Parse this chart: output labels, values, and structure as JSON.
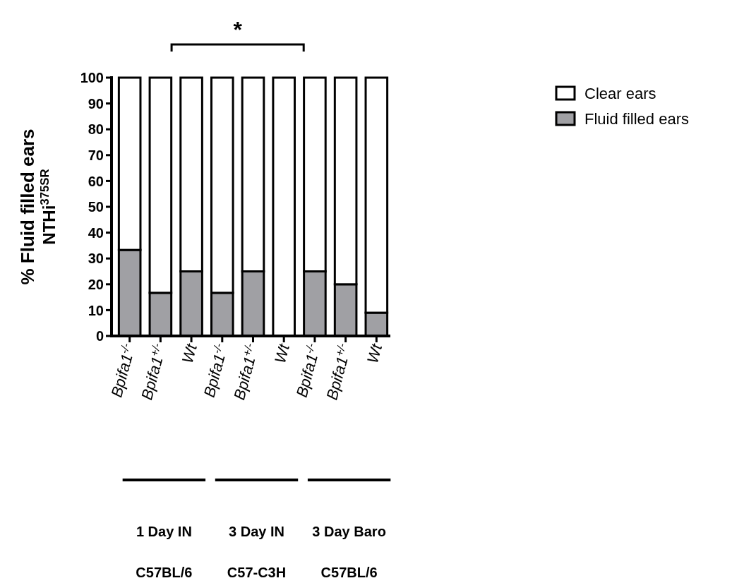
{
  "chart_data": {
    "type": "bar",
    "stacked": true,
    "ylabel": "% Fluid filled ears\nNTHi$^{375SR}$",
    "categories": [
      "Bpifa1$^{-/-}$",
      "Bpifa1$^{+/-}$",
      "Wt",
      "Bpifa1$^{-/-}$",
      "Bpifa1$^{+/-}$",
      "Wt",
      "Bpifa1$^{-/-}$",
      "Bpifa1$^{+/-}$",
      "Wt"
    ],
    "series": [
      {
        "name": "Fluid filled ears",
        "color": "#a0a0a4",
        "values": [
          33.3,
          16.7,
          25,
          16.7,
          25,
          0,
          25,
          20,
          9
        ]
      },
      {
        "name": "Clear ears",
        "color": "#ffffff",
        "values": [
          66.7,
          83.3,
          75,
          83.3,
          75,
          100,
          75,
          80,
          91
        ]
      }
    ],
    "ylim": [
      0,
      100
    ],
    "yticks": [
      0,
      10,
      20,
      30,
      40,
      50,
      60,
      70,
      80,
      90,
      100
    ],
    "grid": false,
    "legend": "top right",
    "annotations": [
      "*",
      "1 Day IN",
      "C57BL/6",
      "3 Day IN",
      "C57-C3H",
      "3 Day Baro",
      "C57BL/6"
    ]
  }
}
